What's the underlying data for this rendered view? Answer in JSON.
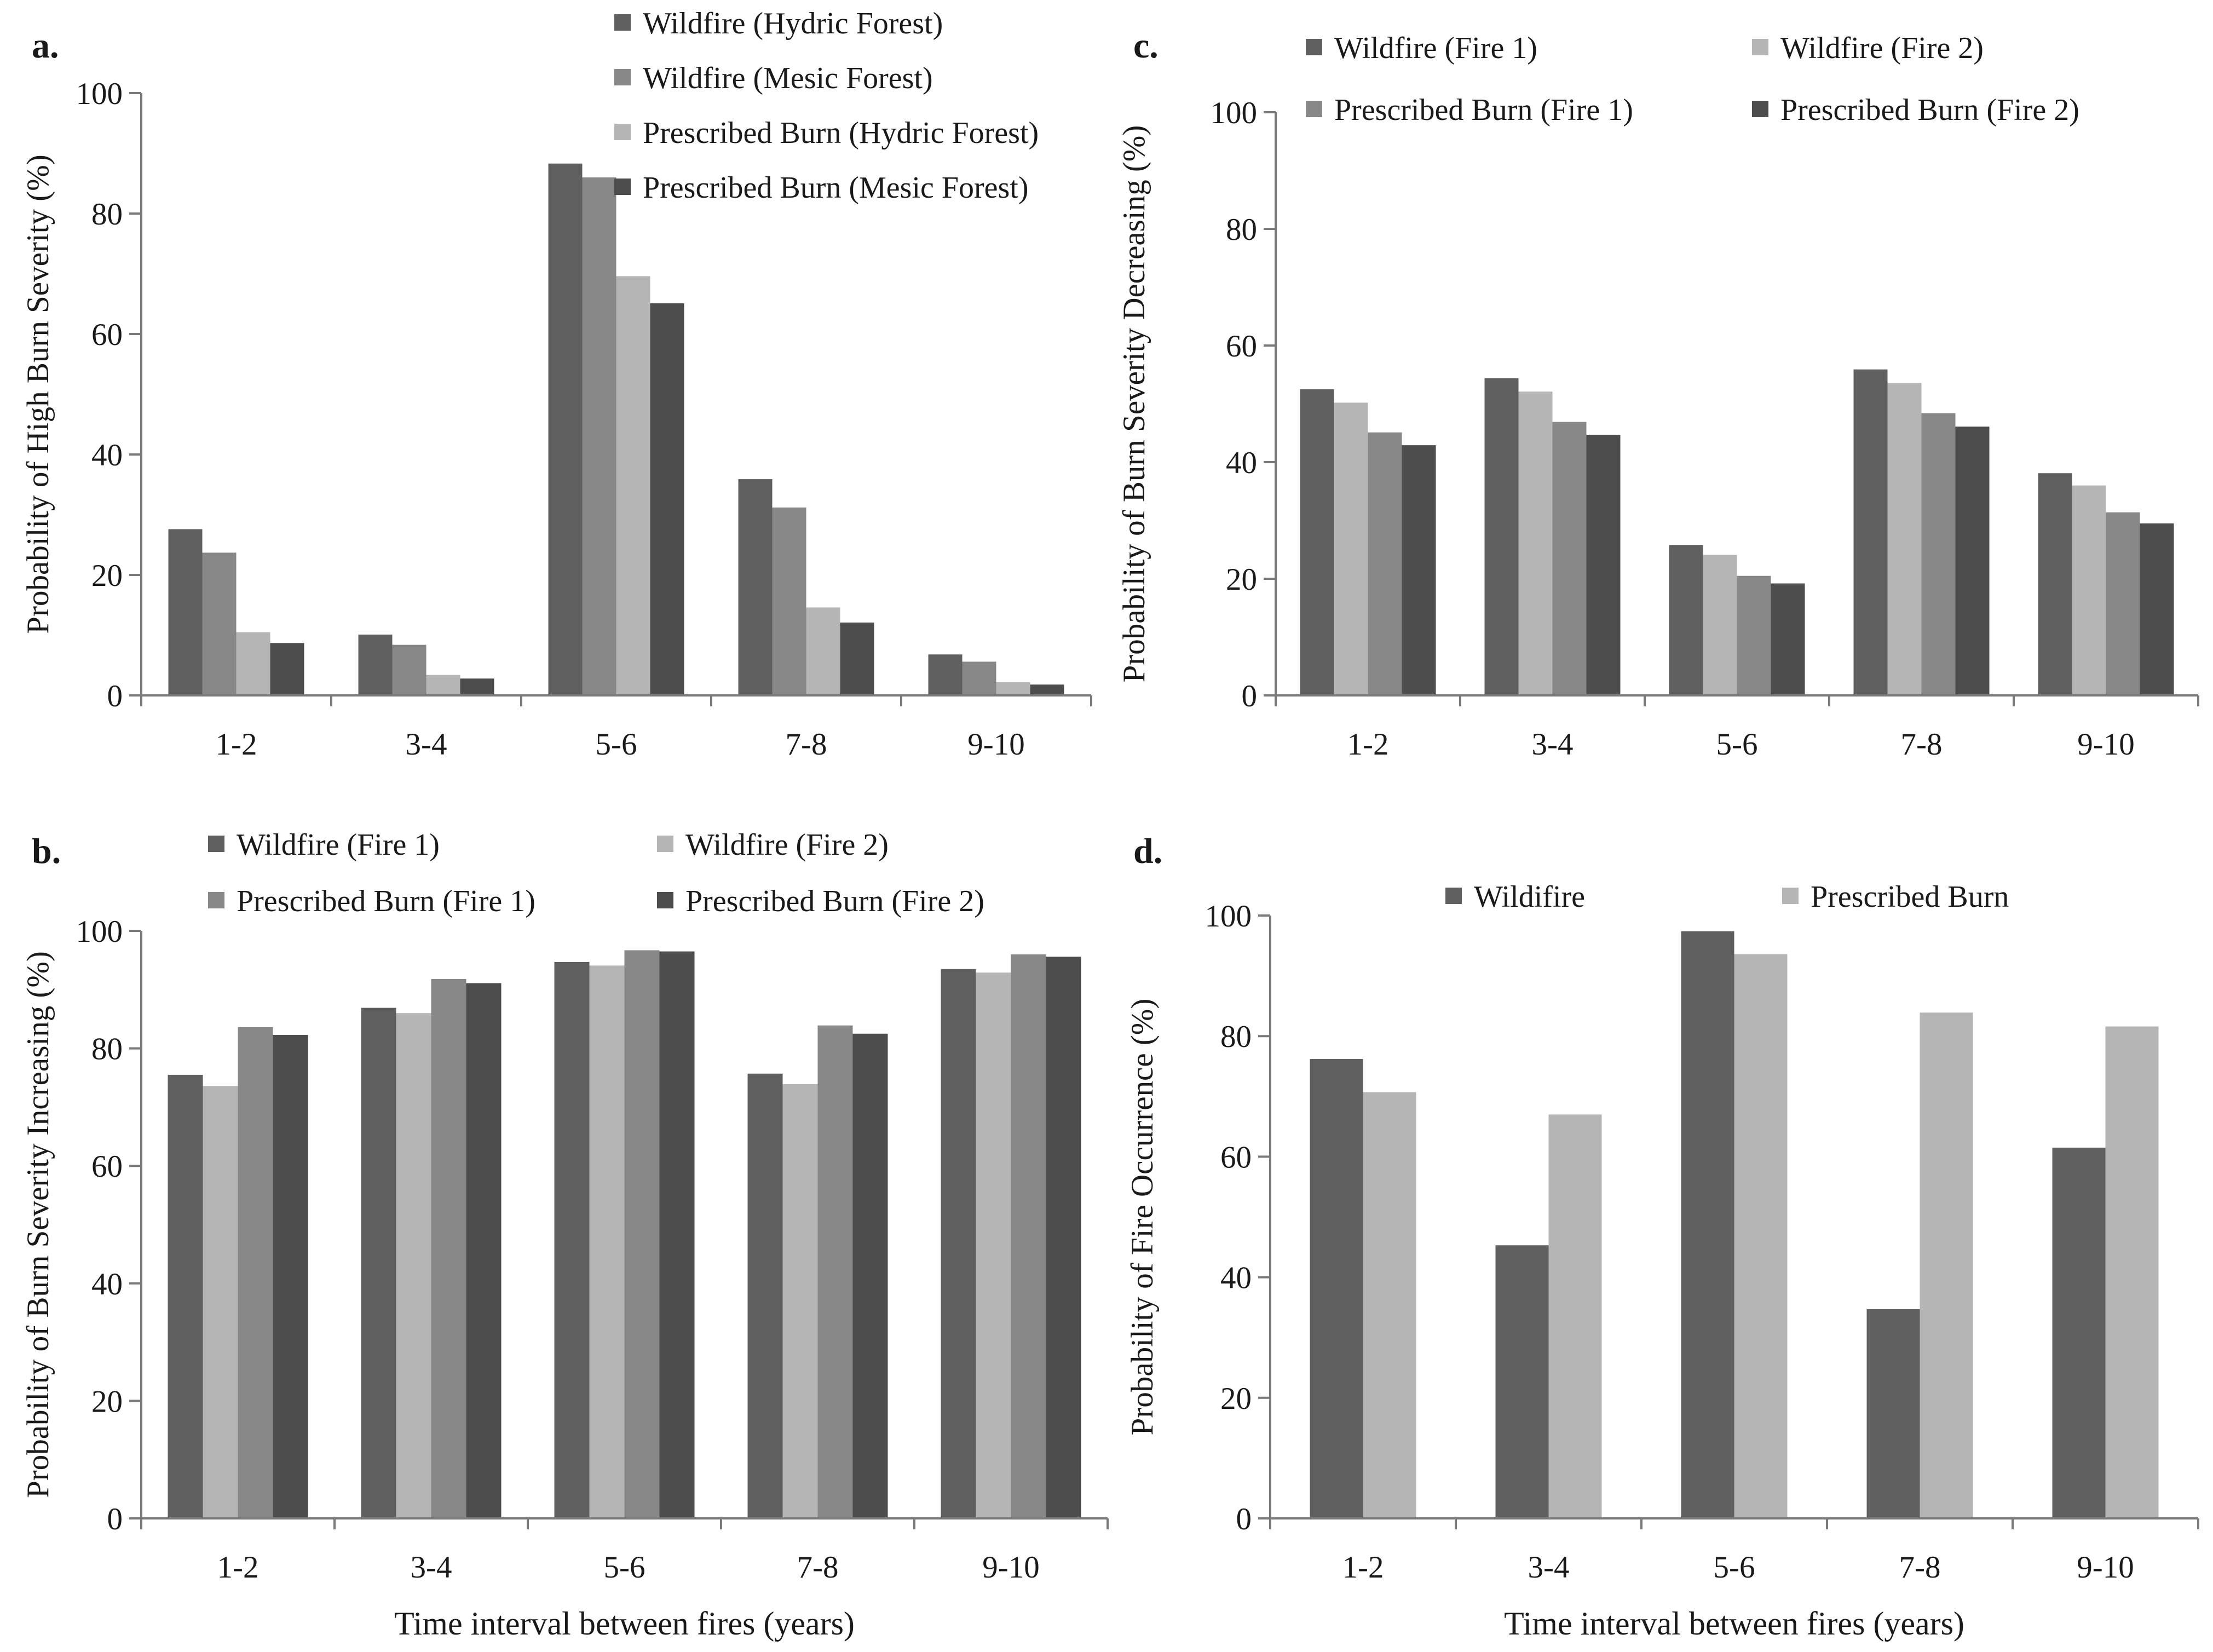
{
  "colors": {
    "dark": "#5f5f5f",
    "mid": "#878787",
    "light": "#b5b5b5",
    "darkest": "#4d4d4d"
  },
  "chart_data": [
    {
      "panel": "a.",
      "type": "bar",
      "categories": [
        "1-2",
        "3-4",
        "5-6",
        "7-8",
        "9-10"
      ],
      "ylabel": "Probability of High Burn Severity (%)",
      "xlabel": "",
      "ylim": [
        0,
        100
      ],
      "yticks": [
        0,
        20,
        40,
        60,
        80,
        100
      ],
      "legend_layout": "stacked",
      "series": [
        {
          "name": "Wildfire (Hydric Forest)",
          "color": "#5f5f5f",
          "values": [
            27.6,
            10.1,
            88.3,
            35.9,
            6.8
          ]
        },
        {
          "name": "Wildfire (Mesic Forest)",
          "color": "#878787",
          "values": [
            23.7,
            8.4,
            86.0,
            31.2,
            5.6
          ]
        },
        {
          "name": "Prescribed Burn (Hydric Forest)",
          "color": "#b5b5b5",
          "values": [
            10.5,
            3.4,
            69.6,
            14.6,
            2.2
          ]
        },
        {
          "name": "Prescribed Burn (Mesic Forest)",
          "color": "#4d4d4d",
          "values": [
            8.7,
            2.8,
            65.1,
            12.1,
            1.8
          ]
        }
      ]
    },
    {
      "panel": "b.",
      "type": "bar",
      "categories": [
        "1-2",
        "3-4",
        "5-6",
        "7-8",
        "9-10"
      ],
      "ylabel": "Probability of  Burn Severity Increasing (%)",
      "xlabel": "Time interval between fires (years)",
      "ylim": [
        0,
        100
      ],
      "yticks": [
        0,
        20,
        40,
        60,
        80,
        100
      ],
      "legend_layout": "grid",
      "series": [
        {
          "name": "Wildfire (Fire 1)",
          "color": "#5f5f5f",
          "values": [
            75.5,
            86.9,
            94.7,
            75.7,
            93.5
          ]
        },
        {
          "name": "Wildfire (Fire 2)",
          "color": "#b5b5b5",
          "values": [
            73.6,
            86.0,
            94.1,
            73.9,
            92.9
          ]
        },
        {
          "name": "Prescribed Burn (Fire 1)",
          "color": "#878787",
          "values": [
            83.6,
            91.8,
            96.7,
            83.9,
            96.0
          ]
        },
        {
          "name": "Prescribed Burn (Fire 2)",
          "color": "#4d4d4d",
          "values": [
            82.3,
            91.1,
            96.5,
            82.5,
            95.6
          ]
        }
      ]
    },
    {
      "panel": "c.",
      "type": "bar",
      "categories": [
        "1-2",
        "3-4",
        "5-6",
        "7-8",
        "9-10"
      ],
      "ylabel": "Probability of  Burn Severity Decreasing (%)",
      "xlabel": "",
      "ylim": [
        0,
        100
      ],
      "yticks": [
        0,
        20,
        40,
        60,
        80,
        100
      ],
      "legend_layout": "grid",
      "series": [
        {
          "name": "Wildfire (Fire 1)",
          "color": "#5f5f5f",
          "values": [
            52.5,
            54.4,
            25.8,
            55.9,
            38.1
          ]
        },
        {
          "name": "Wildfire (Fire 2)",
          "color": "#b5b5b5",
          "values": [
            50.2,
            52.1,
            24.1,
            53.6,
            36.0
          ]
        },
        {
          "name": "Prescribed Burn (Fire 1)",
          "color": "#878787",
          "values": [
            45.1,
            46.9,
            20.5,
            48.4,
            31.4
          ]
        },
        {
          "name": "Prescribed Burn (Fire 2)",
          "color": "#4d4d4d",
          "values": [
            42.9,
            44.7,
            19.2,
            46.1,
            29.5
          ]
        }
      ]
    },
    {
      "panel": "d.",
      "type": "bar",
      "categories": [
        "1-2",
        "3-4",
        "5-6",
        "7-8",
        "9-10"
      ],
      "ylabel": "Probability of Fire Occurrence (%)",
      "xlabel": "Time interval between fires (years)",
      "ylim": [
        0,
        100
      ],
      "yticks": [
        0,
        20,
        40,
        60,
        80,
        100
      ],
      "legend_layout": "row",
      "series": [
        {
          "name": "Wildifire",
          "color": "#5f5f5f",
          "values": [
            76.2,
            45.3,
            97.4,
            34.7,
            61.5
          ]
        },
        {
          "name": "Prescribed Burn",
          "color": "#b5b5b5",
          "values": [
            70.7,
            67.0,
            93.6,
            83.9,
            81.6
          ]
        }
      ]
    }
  ]
}
